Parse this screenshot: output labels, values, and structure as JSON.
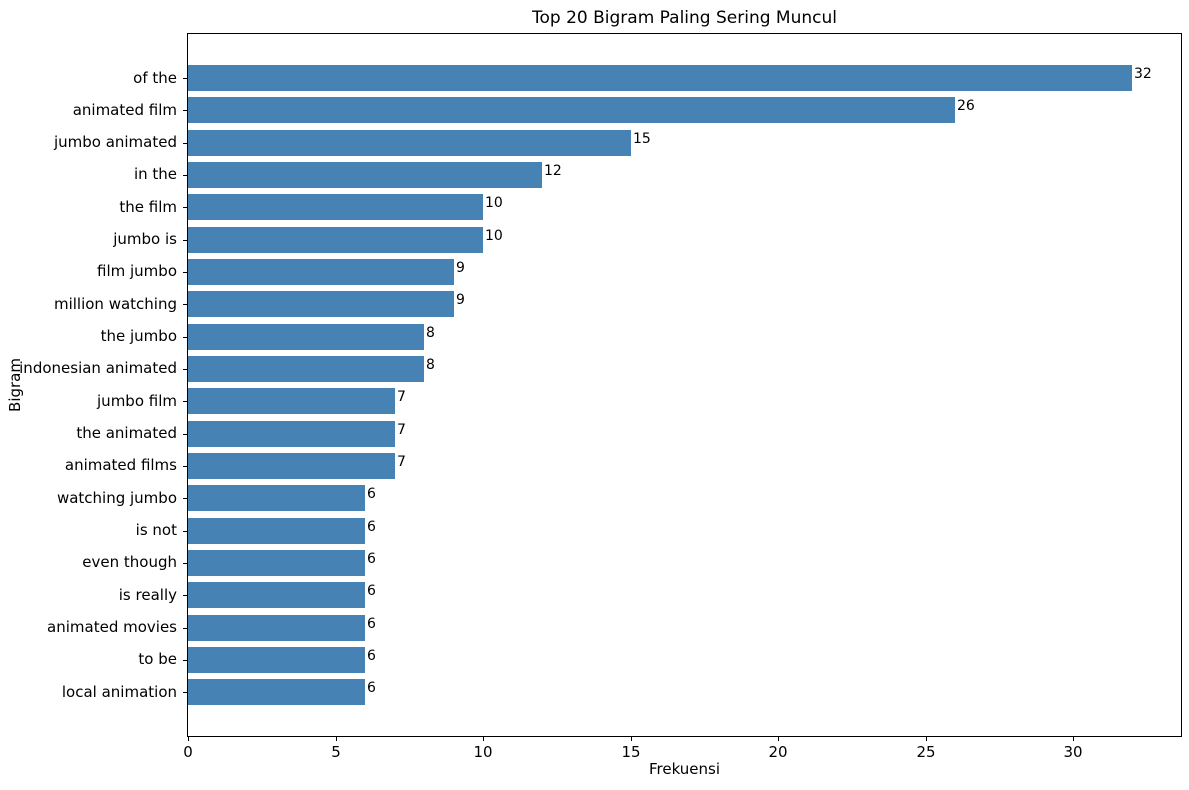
{
  "figure": {
    "title": "Top 20 Bigram Paling Sering Muncul",
    "xlabel": "Frekuensi",
    "ylabel": "Bigram"
  },
  "chart_data": {
    "type": "bar",
    "orientation": "horizontal",
    "title": "Top 20 Bigram Paling Sering Muncul",
    "xlabel": "Frekuensi",
    "ylabel": "Bigram",
    "categories": [
      "of the",
      "animated film",
      "jumbo animated",
      "in the",
      "the film",
      "jumbo is",
      "film jumbo",
      "million watching",
      "the jumbo",
      "indonesian animated",
      "jumbo film",
      "the animated",
      "animated films",
      "watching jumbo",
      "is not",
      "even though",
      "is really",
      "animated movies",
      "to be",
      "local animation"
    ],
    "values": [
      32,
      26,
      15,
      12,
      10,
      10,
      9,
      9,
      8,
      8,
      7,
      7,
      7,
      6,
      6,
      6,
      6,
      6,
      6,
      6
    ],
    "bar_color": "#4682b4",
    "text_color": "#000000",
    "background_color": "#ffffff",
    "xlim": [
      0,
      33.65
    ],
    "x_ticks": [
      0,
      5,
      10,
      15,
      20,
      25,
      30
    ],
    "grid": false,
    "value_labels_shown": true,
    "legend": null
  }
}
